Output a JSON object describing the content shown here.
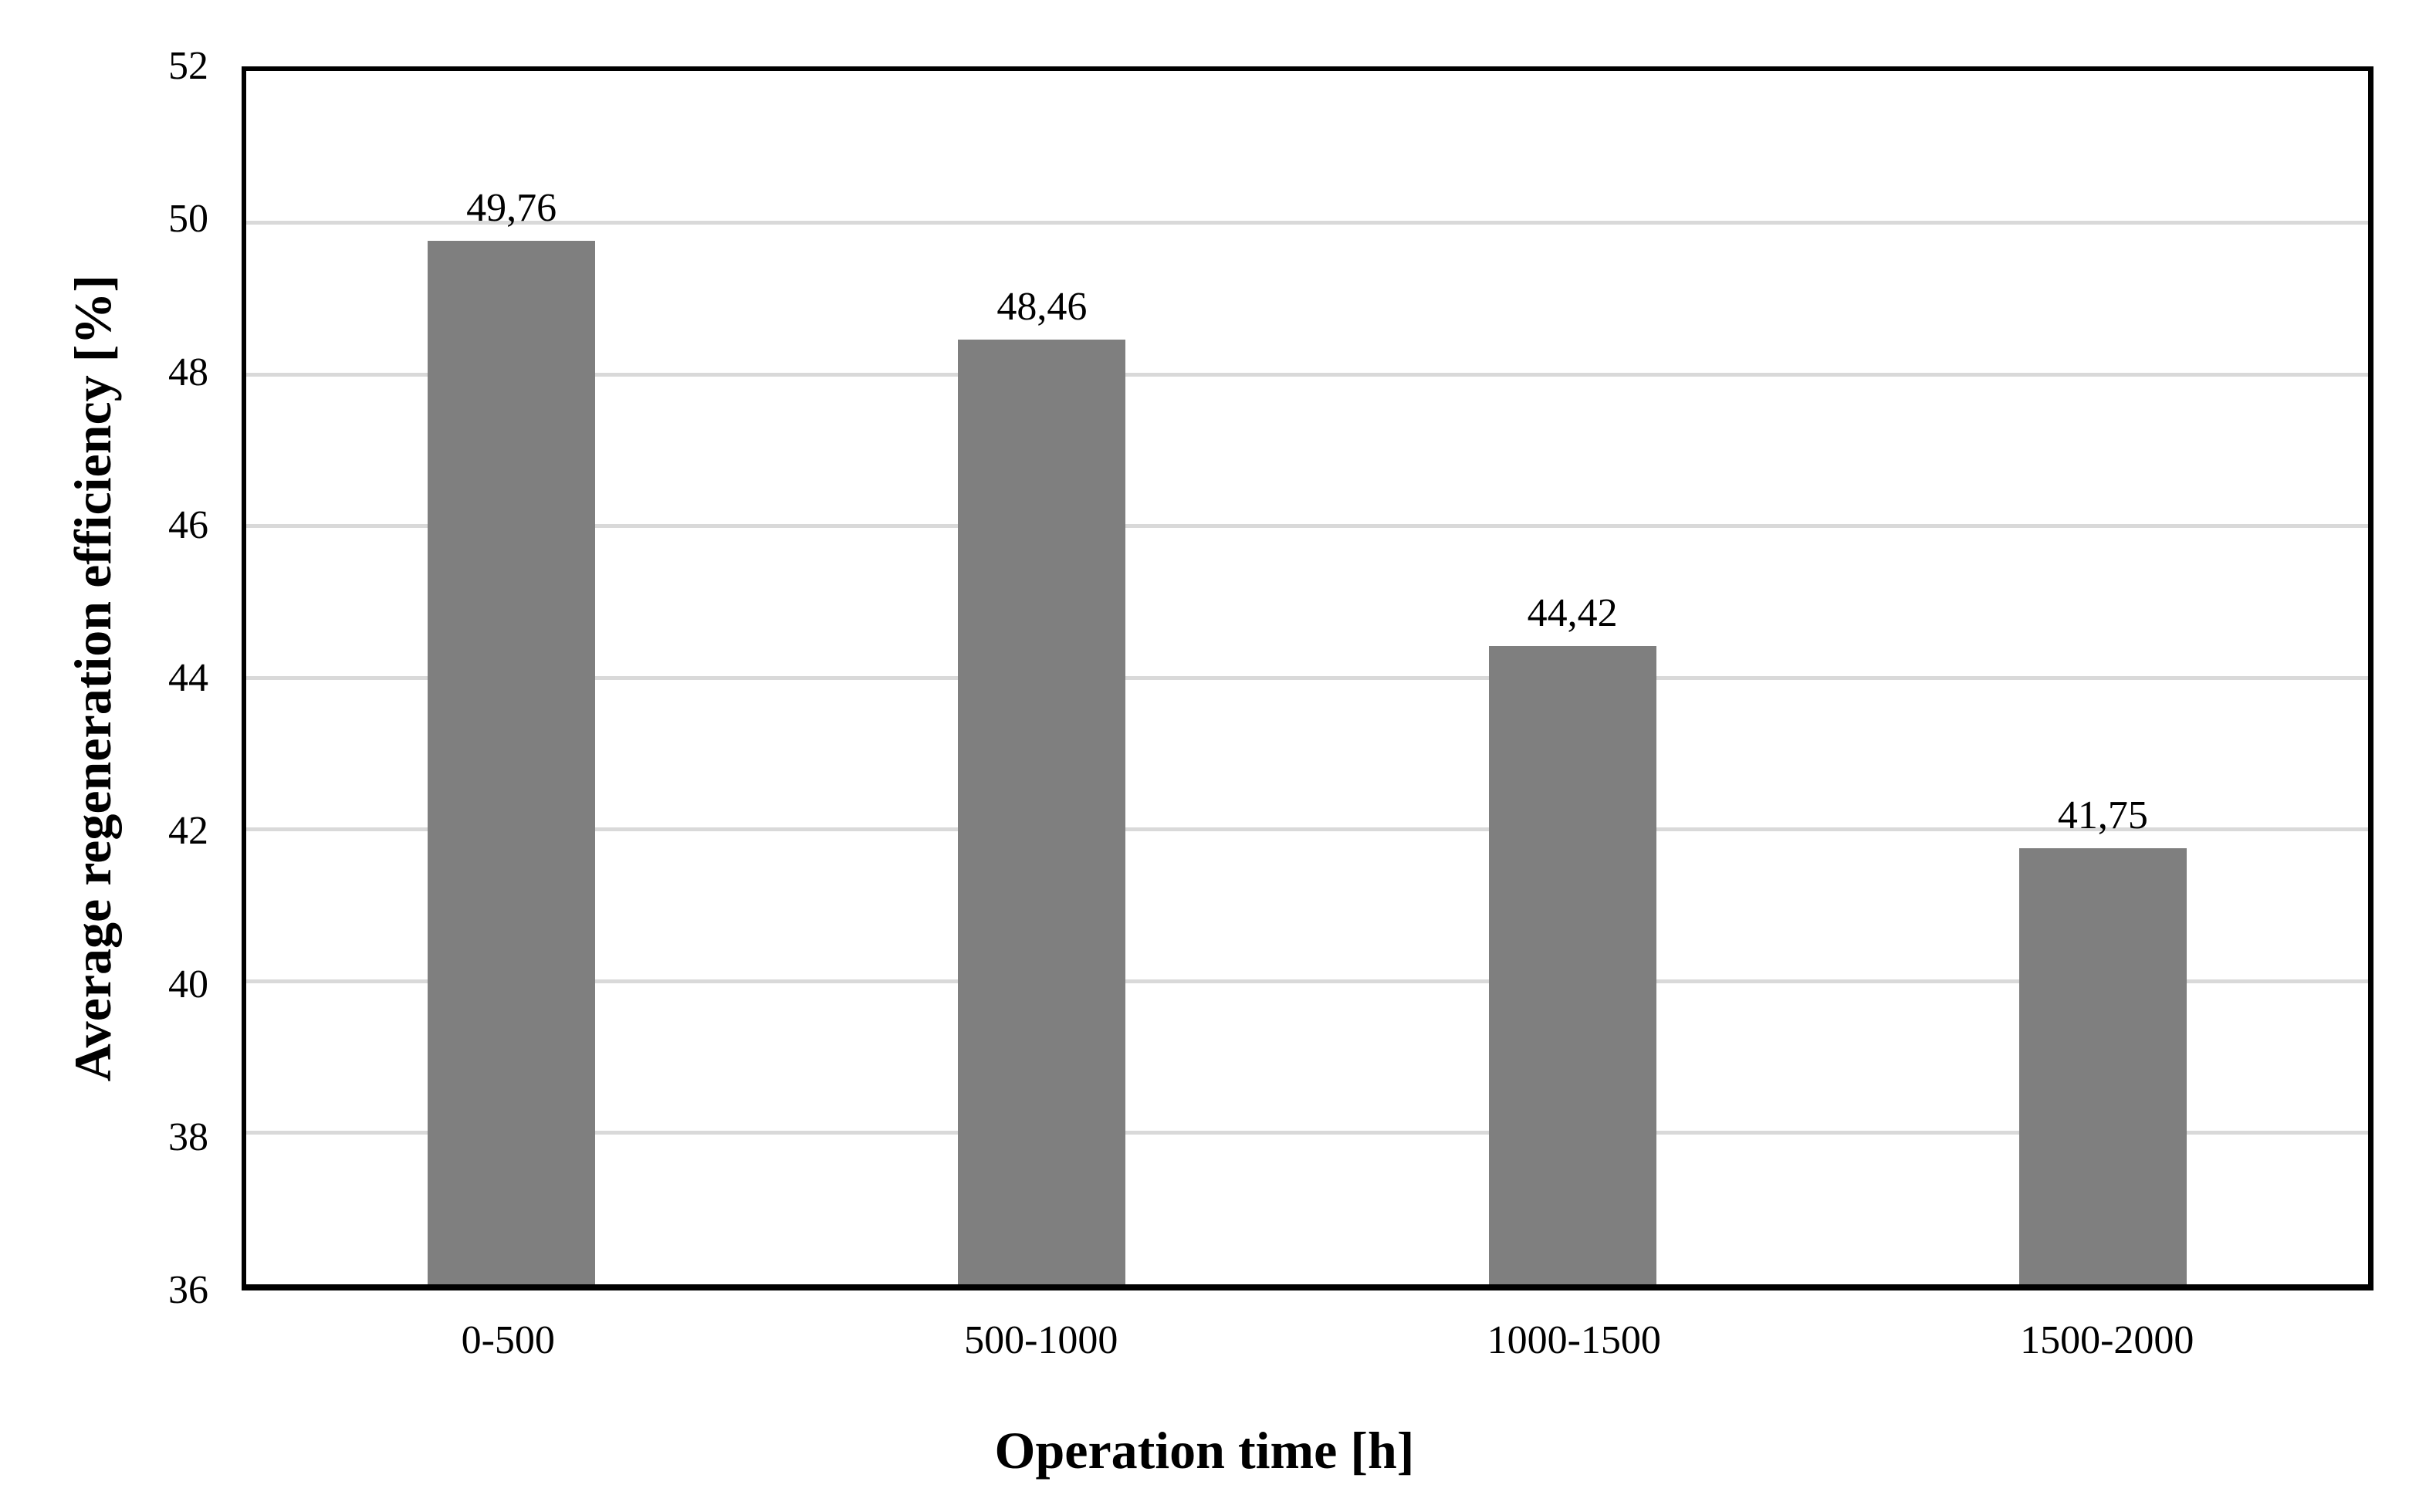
{
  "chart_data": {
    "type": "bar",
    "title": "",
    "categories": [
      "0-500",
      "500-1000",
      "1000-1500",
      "1500-2000"
    ],
    "values": [
      49.76,
      48.46,
      44.42,
      41.75
    ],
    "value_labels": [
      "49,76",
      "48,46",
      "44,42",
      "41,75"
    ],
    "xlabel": "Operation time [h]",
    "ylabel": "Average regeneration efficiency [%]",
    "ylim": [
      36,
      52
    ],
    "yticks": [
      36,
      38,
      40,
      42,
      44,
      46,
      48,
      50,
      52
    ],
    "grid": "horizontal-on",
    "legend": "none",
    "bar_color": "#7F7F7F",
    "gridline_color": "#D9D9D9",
    "axis_color": "#000000",
    "background_color": "#FFFFFF"
  }
}
